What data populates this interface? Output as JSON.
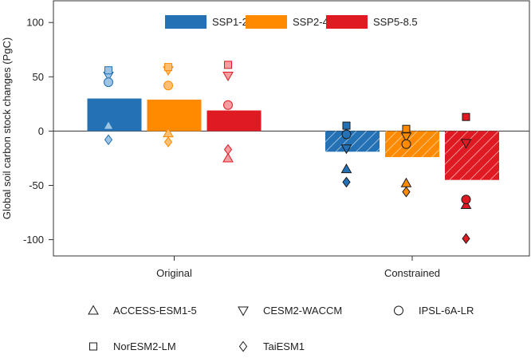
{
  "chart_data": {
    "type": "bar",
    "ylabel": "Global soil carbon stock changes (PgC)",
    "ylim": [
      -115,
      120
    ],
    "yticks": [
      100,
      50,
      0,
      -50,
      -100
    ],
    "categories": [
      "Original",
      "Constrained"
    ],
    "series": [
      {
        "name": "SSP1-2.6",
        "color": "#2471b5",
        "light_color": "#9ec4e4",
        "values": [
          30,
          -19
        ]
      },
      {
        "name": "SSP2-4.5",
        "color": "#ff8a00",
        "light_color": "#ffbf72",
        "values": [
          29,
          -24
        ]
      },
      {
        "name": "SSP5-8.5",
        "color": "#e01a22",
        "light_color": "#f39ea1",
        "values": [
          19,
          -45
        ]
      }
    ],
    "hatched_category": "Constrained",
    "models": [
      {
        "name": "ACCESS-ESM1-5",
        "marker": "triangle-up",
        "values": {
          "Original": [
            5,
            -2,
            -25
          ],
          "Constrained": [
            -35,
            -48,
            -68
          ]
        }
      },
      {
        "name": "CESM2-WACCM",
        "marker": "triangle-down",
        "values": {
          "Original": [
            51,
            56,
            51
          ],
          "Constrained": [
            -16,
            -5,
            -11
          ]
        }
      },
      {
        "name": "IPSL-6A-LR",
        "marker": "circle",
        "values": {
          "Original": [
            45,
            42,
            24
          ],
          "Constrained": [
            -3,
            -12,
            -63
          ]
        }
      },
      {
        "name": "NorESM2-LM",
        "marker": "square",
        "values": {
          "Original": [
            56,
            59,
            61
          ],
          "Constrained": [
            5,
            2,
            13
          ]
        }
      },
      {
        "name": "TaiESM1",
        "marker": "diamond",
        "values": {
          "Original": [
            -8,
            -10,
            -17
          ],
          "Constrained": [
            -47,
            -56,
            -99
          ]
        }
      }
    ],
    "legend_position": "top-right",
    "grid": false
  }
}
